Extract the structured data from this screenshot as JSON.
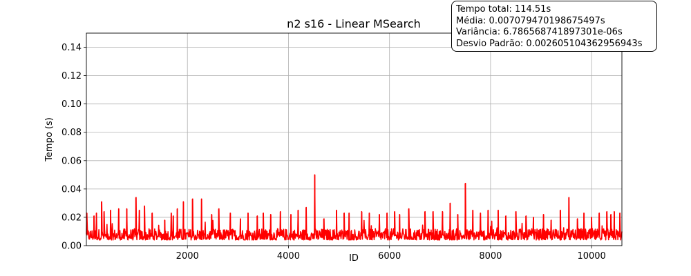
{
  "chart_data": {
    "type": "line",
    "title": "n2 s16 - Linear MSearch",
    "xlabel": "ID",
    "ylabel": "Tempo (s)",
    "xlim": [
      0,
      10600
    ],
    "ylim": [
      0.0,
      0.15
    ],
    "xticks": [
      2000,
      4000,
      6000,
      8000,
      10000
    ],
    "yticks": [
      "0.00",
      "0.02",
      "0.04",
      "0.06",
      "0.08",
      "0.10",
      "0.12",
      "0.14"
    ],
    "grid": true,
    "series": [
      {
        "color": "#ff0000",
        "baseline_range": [
          0.004,
          0.012
        ],
        "spikes": [
          {
            "x": 10,
            "y": 0.023
          },
          {
            "x": 150,
            "y": 0.021
          },
          {
            "x": 200,
            "y": 0.023
          },
          {
            "x": 300,
            "y": 0.031
          },
          {
            "x": 350,
            "y": 0.024
          },
          {
            "x": 480,
            "y": 0.025
          },
          {
            "x": 640,
            "y": 0.026
          },
          {
            "x": 800,
            "y": 0.026
          },
          {
            "x": 980,
            "y": 0.034
          },
          {
            "x": 1050,
            "y": 0.025
          },
          {
            "x": 1150,
            "y": 0.028
          },
          {
            "x": 1300,
            "y": 0.023
          },
          {
            "x": 1550,
            "y": 0.018
          },
          {
            "x": 1680,
            "y": 0.023
          },
          {
            "x": 1720,
            "y": 0.021
          },
          {
            "x": 1800,
            "y": 0.026
          },
          {
            "x": 1920,
            "y": 0.031
          },
          {
            "x": 2100,
            "y": 0.033
          },
          {
            "x": 2280,
            "y": 0.033
          },
          {
            "x": 2480,
            "y": 0.022
          },
          {
            "x": 2620,
            "y": 0.026
          },
          {
            "x": 2850,
            "y": 0.023
          },
          {
            "x": 3050,
            "y": 0.019
          },
          {
            "x": 3200,
            "y": 0.023
          },
          {
            "x": 3380,
            "y": 0.021
          },
          {
            "x": 3500,
            "y": 0.023
          },
          {
            "x": 3650,
            "y": 0.022
          },
          {
            "x": 3840,
            "y": 0.024
          },
          {
            "x": 4050,
            "y": 0.022
          },
          {
            "x": 4190,
            "y": 0.025
          },
          {
            "x": 4350,
            "y": 0.027
          },
          {
            "x": 4520,
            "y": 0.05
          },
          {
            "x": 4700,
            "y": 0.019
          },
          {
            "x": 4950,
            "y": 0.025
          },
          {
            "x": 5100,
            "y": 0.023
          },
          {
            "x": 5200,
            "y": 0.023
          },
          {
            "x": 5450,
            "y": 0.024
          },
          {
            "x": 5600,
            "y": 0.023
          },
          {
            "x": 5800,
            "y": 0.022
          },
          {
            "x": 5950,
            "y": 0.023
          },
          {
            "x": 6100,
            "y": 0.024
          },
          {
            "x": 6200,
            "y": 0.022
          },
          {
            "x": 6380,
            "y": 0.026
          },
          {
            "x": 6700,
            "y": 0.024
          },
          {
            "x": 6860,
            "y": 0.024
          },
          {
            "x": 7050,
            "y": 0.024
          },
          {
            "x": 7200,
            "y": 0.03
          },
          {
            "x": 7350,
            "y": 0.022
          },
          {
            "x": 7500,
            "y": 0.044
          },
          {
            "x": 7650,
            "y": 0.025
          },
          {
            "x": 7800,
            "y": 0.023
          },
          {
            "x": 7950,
            "y": 0.025
          },
          {
            "x": 8150,
            "y": 0.025
          },
          {
            "x": 8300,
            "y": 0.021
          },
          {
            "x": 8500,
            "y": 0.024
          },
          {
            "x": 8700,
            "y": 0.021
          },
          {
            "x": 8850,
            "y": 0.02
          },
          {
            "x": 9050,
            "y": 0.022
          },
          {
            "x": 9200,
            "y": 0.018
          },
          {
            "x": 9380,
            "y": 0.025
          },
          {
            "x": 9550,
            "y": 0.034
          },
          {
            "x": 9720,
            "y": 0.019
          },
          {
            "x": 9850,
            "y": 0.023
          },
          {
            "x": 10000,
            "y": 0.02
          },
          {
            "x": 10150,
            "y": 0.023
          },
          {
            "x": 10300,
            "y": 0.024
          },
          {
            "x": 10380,
            "y": 0.022
          },
          {
            "x": 10450,
            "y": 0.024
          },
          {
            "x": 10560,
            "y": 0.023
          }
        ]
      }
    ],
    "annotation": {
      "lines": [
        "Tempo total: 114.51s",
        "Média: 0.007079470198675497s",
        "Variância: 6.786568741897301e-06s",
        "Desvio Padrão: 0.002605104362956943s"
      ]
    }
  }
}
